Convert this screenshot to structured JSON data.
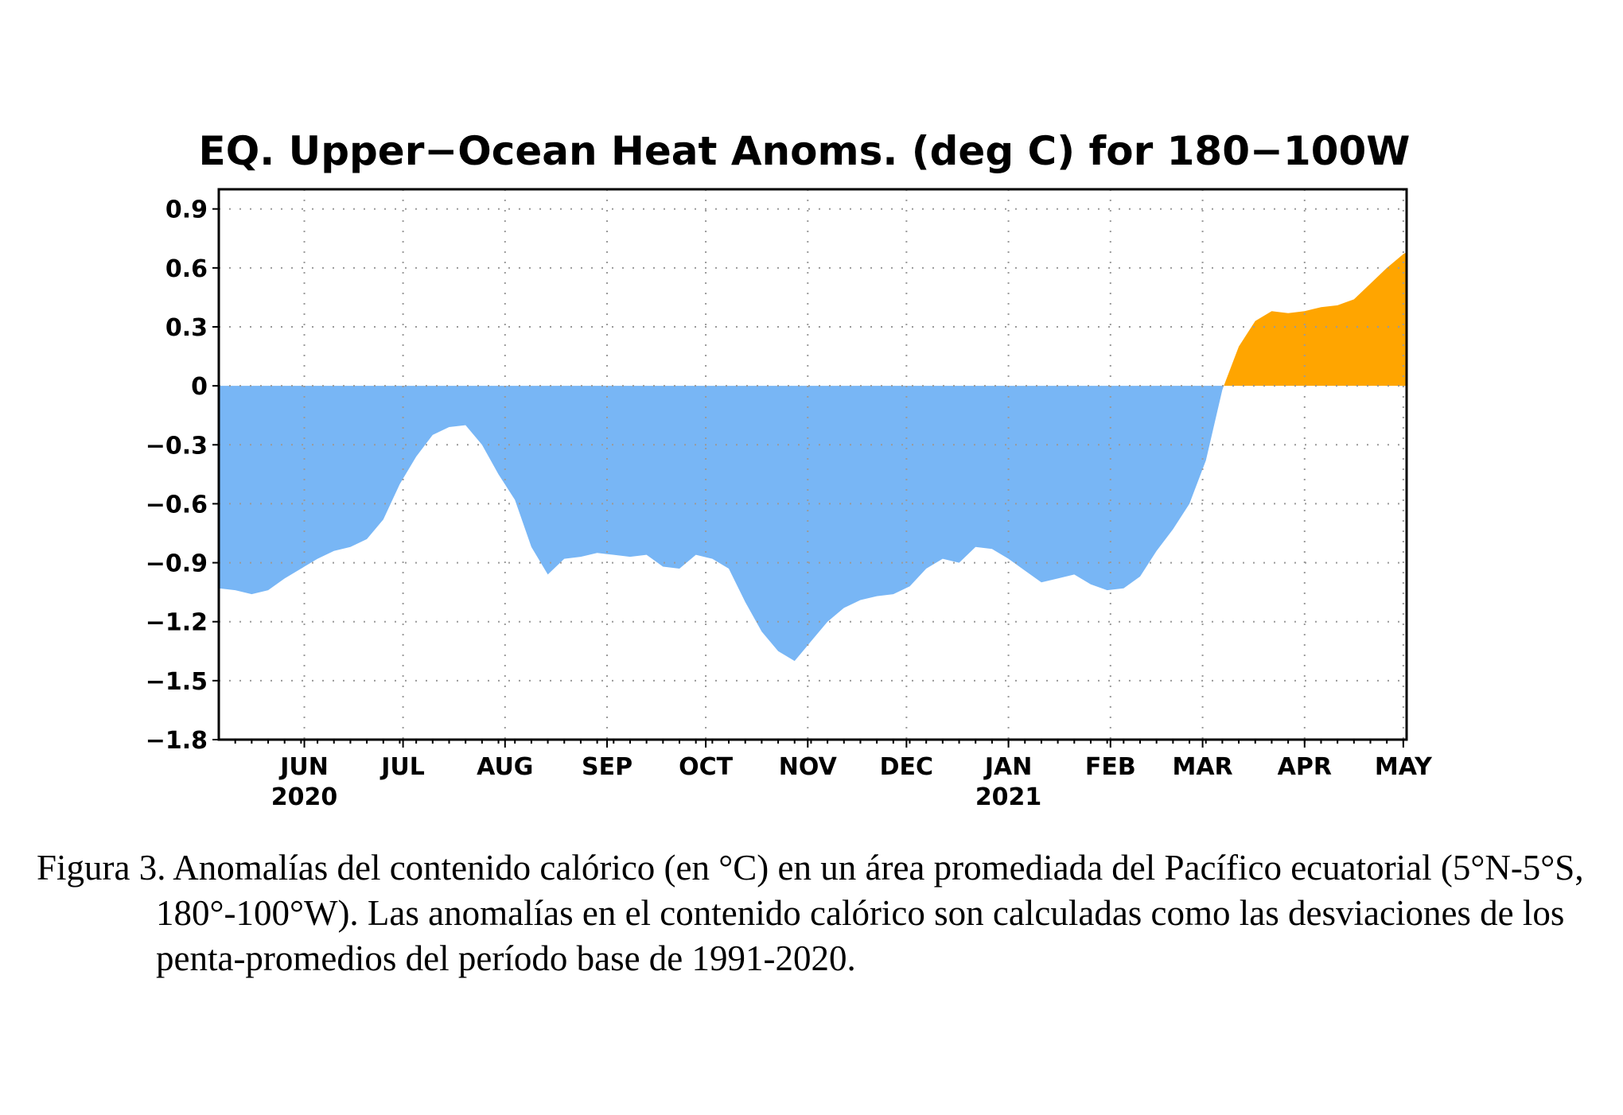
{
  "chart_data": {
    "type": "area",
    "title": "EQ. Upper−Ocean Heat Anoms. (deg C) for 180−100W",
    "xlabel": "",
    "ylabel": "",
    "ylim": [
      -1.8,
      1.0
    ],
    "yticks": [
      0.9,
      0.6,
      0.3,
      0,
      -0.3,
      -0.6,
      -0.9,
      -1.2,
      -1.5,
      -1.8
    ],
    "ytick_labels": [
      "0.9",
      "0.6",
      "0.3",
      "0",
      "−0.3",
      "−0.6",
      "−0.9",
      "−1.2",
      "−1.5",
      "−1.8"
    ],
    "xlim": [
      "2020-05-06",
      "2021-05-02"
    ],
    "xticks": [
      {
        "date": "2020-06-01",
        "label": "JUN",
        "year": "2020"
      },
      {
        "date": "2020-07-01",
        "label": "JUL",
        "year": ""
      },
      {
        "date": "2020-08-01",
        "label": "AUG",
        "year": ""
      },
      {
        "date": "2020-09-01",
        "label": "SEP",
        "year": ""
      },
      {
        "date": "2020-10-01",
        "label": "OCT",
        "year": ""
      },
      {
        "date": "2020-11-01",
        "label": "NOV",
        "year": ""
      },
      {
        "date": "2020-12-01",
        "label": "DEC",
        "year": ""
      },
      {
        "date": "2021-01-01",
        "label": "JAN",
        "year": "2021"
      },
      {
        "date": "2021-02-01",
        "label": "FEB",
        "year": ""
      },
      {
        "date": "2021-03-01",
        "label": "MAR",
        "year": ""
      },
      {
        "date": "2021-04-01",
        "label": "APR",
        "year": ""
      },
      {
        "date": "2021-05-01",
        "label": "MAY",
        "year": ""
      }
    ],
    "grid": true,
    "positive_color": "#FFA500",
    "negative_color": "#78B6F5",
    "series": [
      {
        "x": [
          "2020-05-06",
          "2020-05-11",
          "2020-05-16",
          "2020-05-21",
          "2020-05-26",
          "2020-05-31",
          "2020-06-05",
          "2020-06-10",
          "2020-06-15",
          "2020-06-20",
          "2020-06-25",
          "2020-06-30",
          "2020-07-05",
          "2020-07-10",
          "2020-07-15",
          "2020-07-20",
          "2020-07-25",
          "2020-07-30",
          "2020-08-04",
          "2020-08-09",
          "2020-08-14",
          "2020-08-19",
          "2020-08-24",
          "2020-08-29",
          "2020-09-03",
          "2020-09-08",
          "2020-09-13",
          "2020-09-18",
          "2020-09-23",
          "2020-09-28",
          "2020-10-03",
          "2020-10-08",
          "2020-10-13",
          "2020-10-18",
          "2020-10-23",
          "2020-10-28",
          "2020-11-02",
          "2020-11-07",
          "2020-11-12",
          "2020-11-17",
          "2020-11-22",
          "2020-11-27",
          "2020-12-02",
          "2020-12-07",
          "2020-12-12",
          "2020-12-17",
          "2020-12-22",
          "2020-12-27",
          "2021-01-01",
          "2021-01-06",
          "2021-01-11",
          "2021-01-16",
          "2021-01-21",
          "2021-01-26",
          "2021-01-31",
          "2021-02-05",
          "2021-02-10",
          "2021-02-15",
          "2021-02-20",
          "2021-02-25",
          "2021-03-02",
          "2021-03-07",
          "2021-03-12",
          "2021-03-17",
          "2021-03-22",
          "2021-03-27",
          "2021-04-01",
          "2021-04-06",
          "2021-04-11",
          "2021-04-16",
          "2021-04-21",
          "2021-04-26",
          "2021-05-01",
          "2021-05-02"
        ],
        "values": [
          -1.03,
          -1.04,
          -1.06,
          -1.04,
          -0.98,
          -0.93,
          -0.88,
          -0.84,
          -0.82,
          -0.78,
          -0.68,
          -0.5,
          -0.36,
          -0.25,
          -0.21,
          -0.2,
          -0.3,
          -0.45,
          -0.58,
          -0.82,
          -0.96,
          -0.88,
          -0.87,
          -0.85,
          -0.86,
          -0.87,
          -0.86,
          -0.92,
          -0.93,
          -0.86,
          -0.88,
          -0.93,
          -1.1,
          -1.25,
          -1.35,
          -1.4,
          -1.3,
          -1.2,
          -1.13,
          -1.09,
          -1.07,
          -1.06,
          -1.02,
          -0.93,
          -0.88,
          -0.9,
          -0.82,
          -0.83,
          -0.88,
          -0.94,
          -1.0,
          -0.98,
          -0.96,
          -1.01,
          -1.04,
          -1.03,
          -0.97,
          -0.84,
          -0.73,
          -0.6,
          -0.38,
          -0.02,
          0.2,
          0.33,
          0.38,
          0.37,
          0.38,
          0.4,
          0.41,
          0.44,
          0.52,
          0.6,
          0.67,
          0.68
        ]
      }
    ]
  },
  "caption": {
    "text": "Figura 3. Anomalías del contenido calórico (en °C) en un área promediada del Pacífico ecuatorial (5°N-5°S, 180°-100°W). Las anomalías en el contenido calórico son calculadas como las desviaciones de los penta-promedios del período base de 1991-2020."
  }
}
